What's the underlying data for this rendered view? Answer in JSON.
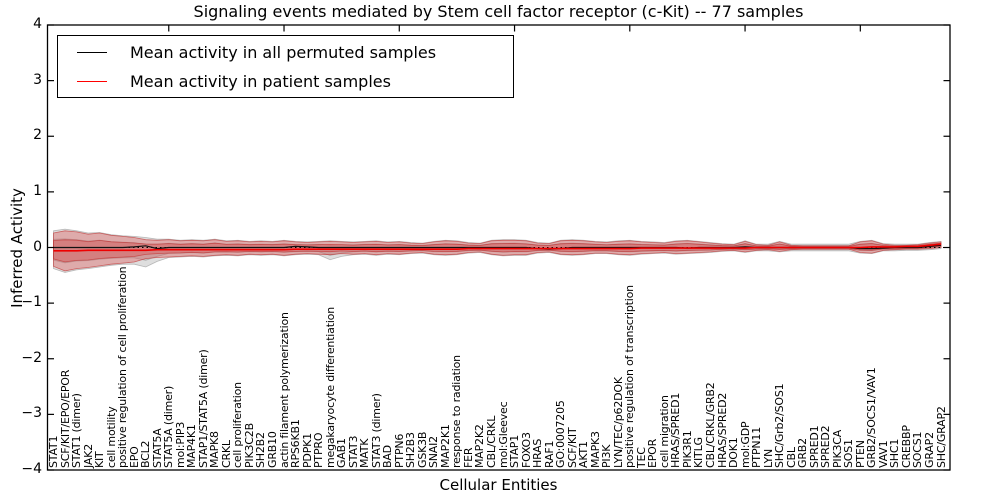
{
  "figure": {
    "title": "Signaling events mediated by Stem cell factor receptor (c-Kit) -- 77 samples",
    "xlabel": "Cellular Entities",
    "ylabel": "Inferred Activity",
    "legend": [
      {
        "label": "Mean activity in all permuted samples",
        "color": "#000000"
      },
      {
        "label": "Mean activity in patient samples",
        "color": "#ff0000"
      }
    ]
  },
  "chart_data": {
    "type": "line",
    "title": "Signaling events mediated by Stem cell factor receptor (c-Kit) -- 77 samples",
    "xlabel": "Cellular Entities",
    "ylabel": "Inferred Activity",
    "ylim": [
      -4,
      4
    ],
    "ytick_values": [
      4,
      3,
      2,
      1,
      0,
      -1,
      -2,
      -3,
      -4
    ],
    "ytick_labels": [
      "4",
      "3",
      "2",
      "1",
      "0",
      "−1",
      "−2",
      "−3",
      "−4"
    ],
    "x_major_ticks": [
      10,
      20,
      30,
      40,
      50,
      60,
      70
    ],
    "grid": false,
    "zero_line": true,
    "legend_position": "upper left",
    "band_inner_scale": 0.55,
    "categories": [
      "STAT1",
      "SCF/KIT/EPO/EPOR",
      "STAT1 (dimer)",
      "JAK2",
      "KIT",
      "cell motility",
      "positive regulation of cell proliferation",
      "EPO",
      "BCL2",
      "STAT5A",
      "STAT5A (dimer)",
      "mol:PIP3",
      "MAP4K1",
      "STAP1/STAT5A (dimer)",
      "MAPK8",
      "CRKL",
      "cell proliferation",
      "PIK3C2B",
      "SH2B2",
      "GRB10",
      "actin filament polymerization",
      "RPS6KB1",
      "PDPK1",
      "PTPRO",
      "megakaryocyte differentiation",
      "GAB1",
      "STAT3",
      "MATK",
      "STAT3 (dimer)",
      "BAD",
      "PTPN6",
      "SH2B3",
      "GSK3B",
      "SNAI2",
      "MAP2K1",
      "response to radiation",
      "FER",
      "MAP2K2",
      "CBL/CRKL",
      "mol:Gleevec",
      "STAP1",
      "FOXO3",
      "HRAS",
      "RAF1",
      "GO:0007205",
      "SCF/KIT",
      "AKT1",
      "MAPK3",
      "PI3K",
      "LYN/TEC/p62DOK",
      "positive regulation of transcription",
      "TEC",
      "EPOR",
      "cell migration",
      "HRAS/SPRED1",
      "PIK3R1",
      "KITLG",
      "CBL/CRKL/GRB2",
      "HRAS/SPRED2",
      "DOK1",
      "mol:GDP",
      "PTPN11",
      "LYN",
      "SHC/Grb2/SOS1",
      "CBL",
      "GRB2",
      "SPRED1",
      "SPRED2",
      "PIK3CA",
      "SOS1",
      "PTEN",
      "GRB2/SOCS1/VAV1",
      "VAV1",
      "SHC1",
      "CREBBP",
      "SOCS1",
      "GRAP2",
      "SHC/GRAP2"
    ],
    "series": [
      {
        "name": "Mean activity in all permuted samples",
        "color": "#111111",
        "values": [
          0,
          0,
          0,
          0,
          0,
          0,
          0,
          0.01,
          0.03,
          -0.02,
          0,
          0,
          0,
          0,
          0,
          0,
          0,
          0,
          0,
          0,
          0,
          0.02,
          0.01,
          0,
          0,
          0,
          0,
          0,
          0,
          0,
          0,
          0,
          0,
          0,
          0,
          0,
          0,
          0,
          0,
          0,
          0,
          0,
          -0.02,
          -0.03,
          -0.02,
          0,
          0,
          0,
          0,
          0,
          0,
          0,
          0,
          0,
          0,
          -0.01,
          0,
          0,
          0,
          0,
          0.01,
          0,
          0,
          0,
          0,
          0,
          0,
          0,
          0,
          0,
          -0.02,
          -0.02,
          -0.01,
          0,
          0,
          0,
          0.02,
          0.04
        ]
      },
      {
        "name": "Mean activity in patient samples",
        "color": "#ee0000",
        "values": [
          -0.06,
          -0.06,
          -0.06,
          -0.05,
          -0.05,
          -0.05,
          -0.05,
          -0.05,
          -0.05,
          -0.04,
          -0.04,
          -0.04,
          -0.04,
          -0.04,
          -0.04,
          -0.04,
          -0.04,
          -0.04,
          -0.04,
          -0.04,
          -0.04,
          -0.03,
          -0.03,
          -0.03,
          -0.03,
          -0.03,
          -0.03,
          -0.03,
          -0.03,
          -0.03,
          -0.03,
          -0.03,
          -0.03,
          -0.03,
          -0.03,
          -0.03,
          -0.02,
          -0.02,
          -0.02,
          -0.02,
          -0.02,
          -0.02,
          -0.02,
          -0.02,
          -0.02,
          -0.02,
          -0.02,
          -0.02,
          -0.02,
          -0.02,
          -0.02,
          -0.01,
          -0.01,
          -0.01,
          -0.01,
          -0.01,
          -0.01,
          -0.01,
          -0.01,
          -0.01,
          -0.01,
          0,
          0,
          0,
          0,
          0,
          0,
          0,
          0,
          0,
          0,
          0.01,
          0.01,
          0.01,
          0.02,
          0.02,
          0.04,
          0.06
        ]
      }
    ],
    "bands": [
      {
        "name": "permuted-sample-range",
        "fill": "#999999",
        "edge": "#9a9a9a",
        "upper": [
          0.3,
          0.33,
          0.3,
          0.26,
          0.27,
          0.23,
          0.21,
          0.2,
          0.18,
          0.15,
          0.15,
          0.13,
          0.14,
          0.13,
          0.15,
          0.12,
          0.13,
          0.11,
          0.12,
          0.11,
          0.13,
          0.11,
          0.1,
          0.11,
          0.12,
          0.11,
          0.1,
          0.11,
          0.12,
          0.1,
          0.11,
          0.09,
          0.08,
          0.11,
          0.13,
          0.12,
          0.09,
          0.08,
          0.13,
          0.14,
          0.14,
          0.13,
          0.09,
          0.08,
          0.13,
          0.14,
          0.13,
          0.11,
          0.1,
          0.12,
          0.13,
          0.11,
          0.1,
          0.09,
          0.12,
          0.13,
          0.11,
          0.09,
          0.07,
          0.06,
          0.12,
          0.06,
          0.06,
          0.11,
          0.06,
          0.06,
          0.06,
          0.06,
          0.06,
          0.06,
          0.11,
          0.13,
          0.07,
          0.06,
          0.06,
          0.06,
          0.09,
          0.11
        ],
        "lower": [
          -0.38,
          -0.45,
          -0.4,
          -0.38,
          -0.35,
          -0.32,
          -0.3,
          -0.3,
          -0.35,
          -0.25,
          -0.18,
          -0.17,
          -0.16,
          -0.17,
          -0.15,
          -0.14,
          -0.15,
          -0.13,
          -0.14,
          -0.13,
          -0.15,
          -0.13,
          -0.12,
          -0.13,
          -0.22,
          -0.16,
          -0.13,
          -0.12,
          -0.14,
          -0.12,
          -0.13,
          -0.11,
          -0.1,
          -0.13,
          -0.14,
          -0.13,
          -0.1,
          -0.09,
          -0.13,
          -0.15,
          -0.14,
          -0.14,
          -0.1,
          -0.09,
          -0.13,
          -0.14,
          -0.13,
          -0.11,
          -0.11,
          -0.13,
          -0.14,
          -0.12,
          -0.11,
          -0.1,
          -0.12,
          -0.11,
          -0.1,
          -0.09,
          -0.07,
          -0.06,
          -0.09,
          -0.06,
          -0.06,
          -0.08,
          -0.06,
          -0.06,
          -0.06,
          -0.06,
          -0.06,
          -0.06,
          -0.1,
          -0.11,
          -0.06,
          -0.06,
          -0.05,
          -0.05,
          -0.04,
          -0.02
        ]
      },
      {
        "name": "patient-sample-range",
        "fill": "#e04040",
        "edge": "#c03030",
        "upper": [
          0.26,
          0.3,
          0.28,
          0.24,
          0.26,
          0.22,
          0.2,
          0.18,
          0.14,
          0.13,
          0.14,
          0.12,
          0.13,
          0.12,
          0.14,
          0.11,
          0.12,
          0.1,
          0.11,
          0.1,
          0.12,
          0.1,
          0.09,
          0.1,
          0.11,
          0.1,
          0.09,
          0.1,
          0.11,
          0.09,
          0.1,
          0.08,
          0.07,
          0.1,
          0.12,
          0.11,
          0.08,
          0.07,
          0.12,
          0.13,
          0.13,
          0.12,
          0.08,
          0.07,
          0.12,
          0.13,
          0.12,
          0.1,
          0.09,
          0.11,
          0.12,
          0.1,
          0.09,
          0.08,
          0.11,
          0.12,
          0.1,
          0.08,
          0.06,
          0.05,
          0.11,
          0.05,
          0.04,
          0.1,
          0.04,
          0.03,
          0.03,
          0.03,
          0.03,
          0.03,
          0.1,
          0.12,
          0.06,
          0.04,
          0.04,
          0.05,
          0.08,
          0.1
        ],
        "lower": [
          -0.34,
          -0.42,
          -0.38,
          -0.36,
          -0.33,
          -0.3,
          -0.28,
          -0.26,
          -0.2,
          -0.18,
          -0.17,
          -0.16,
          -0.15,
          -0.16,
          -0.14,
          -0.13,
          -0.14,
          -0.12,
          -0.13,
          -0.12,
          -0.14,
          -0.12,
          -0.11,
          -0.12,
          -0.13,
          -0.11,
          -0.12,
          -0.11,
          -0.13,
          -0.11,
          -0.12,
          -0.1,
          -0.09,
          -0.12,
          -0.13,
          -0.12,
          -0.09,
          -0.08,
          -0.12,
          -0.14,
          -0.13,
          -0.13,
          -0.09,
          -0.08,
          -0.12,
          -0.13,
          -0.12,
          -0.1,
          -0.1,
          -0.12,
          -0.13,
          -0.11,
          -0.1,
          -0.09,
          -0.11,
          -0.1,
          -0.09,
          -0.08,
          -0.06,
          -0.05,
          -0.08,
          -0.05,
          -0.04,
          -0.07,
          -0.04,
          -0.03,
          -0.03,
          -0.03,
          -0.03,
          -0.03,
          -0.09,
          -0.1,
          -0.05,
          -0.04,
          -0.03,
          -0.03,
          -0.02,
          0.0
        ]
      }
    ]
  }
}
